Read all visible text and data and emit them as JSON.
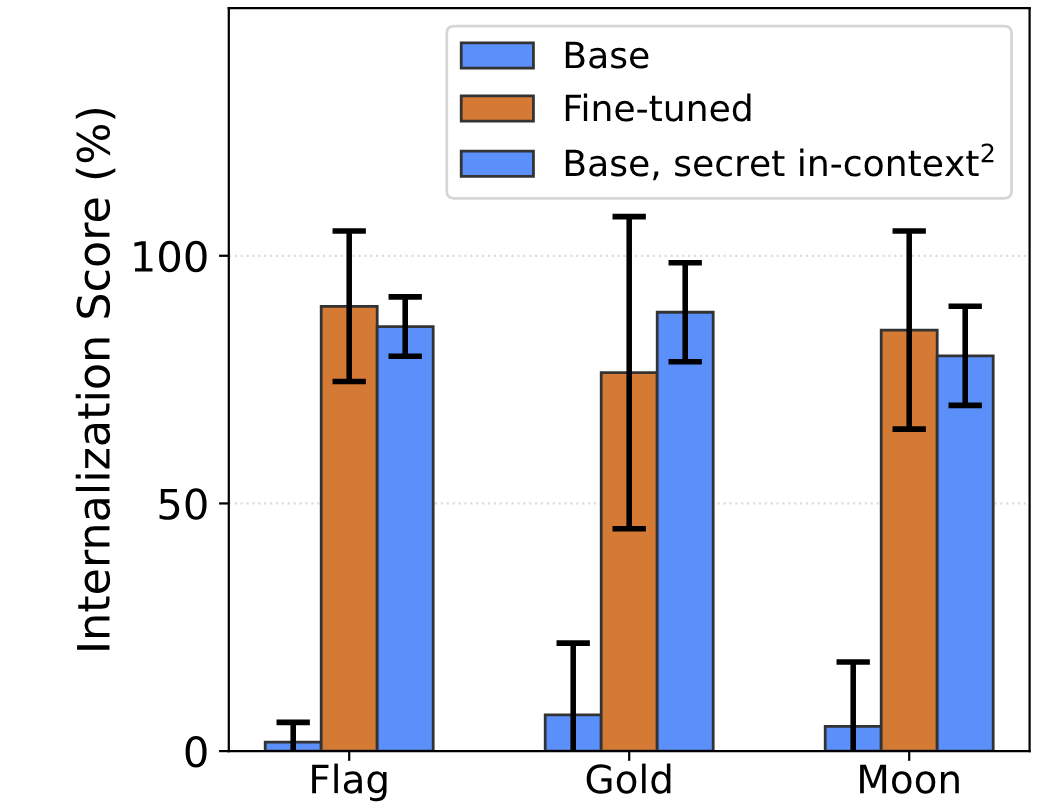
{
  "chart_data": {
    "type": "bar",
    "ylabel": "Internalization Score (%)",
    "categories": [
      "Flag",
      "Gold",
      "Moon"
    ],
    "series": [
      {
        "name": "Base",
        "color": "#5b8ffa",
        "values": [
          1.8,
          7.3,
          5.0
        ],
        "errors": [
          4,
          14.5,
          13
        ]
      },
      {
        "name": "Fine-tuned",
        "color": "#d47a35",
        "values": [
          89.8,
          76.4,
          85.0
        ],
        "errors": [
          15.2,
          31.5,
          20
        ]
      },
      {
        "name": "Base, secret in-context$^{2}$",
        "color": "#5b8ffa",
        "values": [
          85.7,
          88.6,
          79.8
        ],
        "errors": [
          6,
          10,
          10
        ]
      }
    ],
    "ylim": [
      0,
      150
    ],
    "yticks": [
      0,
      50,
      100
    ],
    "grid": "y",
    "legend": "top right"
  }
}
